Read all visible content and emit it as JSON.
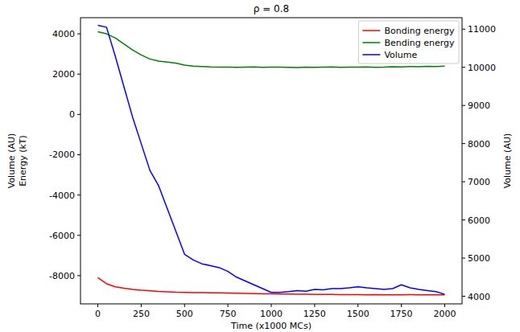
{
  "chart_data": {
    "type": "line",
    "title": "ρ = 0.8",
    "xlabel": "Time (x1000 MCs)",
    "ylabel_lines": [
      "Volume (AU)",
      "Energy (kT)"
    ],
    "y2label": "Volume (AU)",
    "x": [
      0,
      50,
      100,
      150,
      200,
      250,
      300,
      350,
      400,
      450,
      500,
      550,
      600,
      650,
      700,
      750,
      800,
      850,
      900,
      950,
      1000,
      1050,
      1100,
      1150,
      1200,
      1250,
      1300,
      1350,
      1400,
      1450,
      1500,
      1550,
      1600,
      1650,
      1700,
      1750,
      1800,
      1850,
      1900,
      1950,
      2000
    ],
    "series": [
      {
        "name": "Bonding energy",
        "color": "#ff0000",
        "axis": "y",
        "values": [
          -8100,
          -8400,
          -8550,
          -8620,
          -8680,
          -8720,
          -8750,
          -8780,
          -8800,
          -8820,
          -8830,
          -8840,
          -8840,
          -8850,
          -8850,
          -8860,
          -8870,
          -8880,
          -8890,
          -8900,
          -8900,
          -8910,
          -8910,
          -8920,
          -8920,
          -8930,
          -8930,
          -8930,
          -8940,
          -8940,
          -8940,
          -8950,
          -8940,
          -8950,
          -8950,
          -8950,
          -8940,
          -8950,
          -8950,
          -8950,
          -8950
        ]
      },
      {
        "name": "Bending energy",
        "color": "#008000",
        "axis": "y",
        "values": [
          4100,
          4000,
          3800,
          3500,
          3200,
          2950,
          2750,
          2650,
          2600,
          2550,
          2450,
          2400,
          2380,
          2360,
          2350,
          2350,
          2340,
          2350,
          2360,
          2340,
          2350,
          2350,
          2340,
          2330,
          2350,
          2340,
          2350,
          2360,
          2340,
          2350,
          2350,
          2360,
          2340,
          2350,
          2370,
          2360,
          2380,
          2370,
          2390,
          2380,
          2400
        ]
      },
      {
        "name": "Volume",
        "color": "#0000ff",
        "axis": "y2",
        "values": [
          11100,
          11050,
          10300,
          9500,
          8700,
          8000,
          7300,
          6900,
          6300,
          5700,
          5100,
          4950,
          4850,
          4800,
          4750,
          4650,
          4500,
          4400,
          4300,
          4200,
          4100,
          4100,
          4120,
          4150,
          4130,
          4180,
          4170,
          4200,
          4200,
          4220,
          4250,
          4220,
          4200,
          4180,
          4200,
          4300,
          4220,
          4180,
          4150,
          4120,
          4050
        ]
      }
    ],
    "xlim": [
      -100,
      2100
    ],
    "xticks": [
      0,
      250,
      500,
      750,
      1000,
      1250,
      1500,
      1750,
      2000
    ],
    "ylim": [
      -9400,
      4800
    ],
    "yticks": [
      -8000,
      -6000,
      -4000,
      -2000,
      0,
      2000,
      4000
    ],
    "y2lim": [
      3800,
      11300
    ],
    "y2ticks": [
      4000,
      5000,
      6000,
      7000,
      8000,
      9000,
      10000,
      11000
    ],
    "legend": "upper right",
    "grid": false
  }
}
